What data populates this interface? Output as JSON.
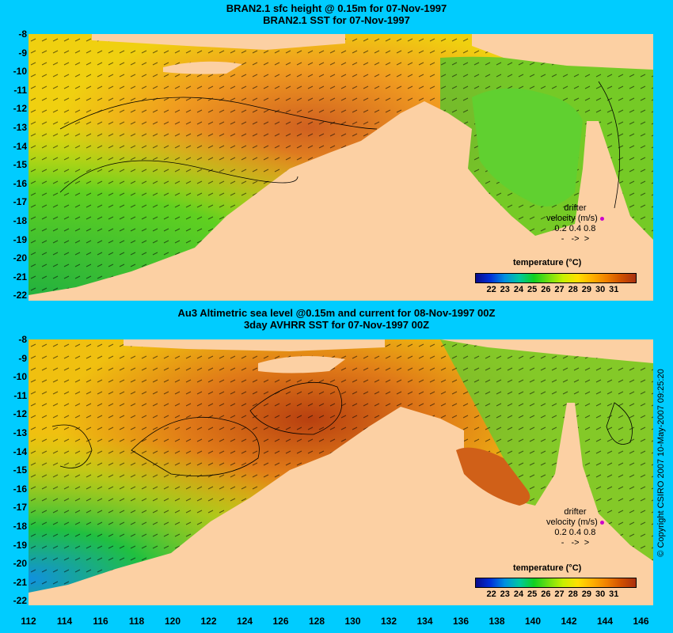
{
  "top": {
    "title_line1": "BRAN2.1 sfc height @ 0.15m for 07-Nov-1997",
    "title_line2": "BRAN2.1 SST for 07-Nov-1997",
    "drifter_label": "drifter",
    "velocity_label": "velocity (m/s)",
    "velocity_scale": "0.2 0.4 0.8",
    "colorbar_title": "temperature (°C)",
    "colorbar_ticks": [
      "22",
      "23",
      "24",
      "25",
      "26",
      "27",
      "28",
      "29",
      "30",
      "31"
    ]
  },
  "bottom": {
    "title_line1": "Au3 Altimetric sea level  @0.15m and current for 08-Nov-1997 00Z",
    "title_line2": "3day AVHRR SST for 07-Nov-1997 00Z",
    "drifter_label": "drifter",
    "velocity_label": "velocity (m/s)",
    "velocity_scale": "0.2 0.4 0.8",
    "colorbar_title": "temperature (°C)",
    "colorbar_ticks": [
      "22",
      "23",
      "24",
      "25",
      "26",
      "27",
      "28",
      "29",
      "30",
      "31"
    ]
  },
  "y_axis_labels": [
    "-8",
    "-9",
    "-10",
    "-11",
    "-12",
    "-13",
    "-14",
    "-15",
    "-16",
    "-17",
    "-18",
    "-19",
    "-20",
    "-21",
    "-22"
  ],
  "x_axis_labels": [
    "112",
    "114",
    "116",
    "118",
    "120",
    "122",
    "124",
    "126",
    "128",
    "130",
    "132",
    "134",
    "136",
    "138",
    "140",
    "142",
    "144",
    "146"
  ],
  "copyright": "© Copyright CSIRO 2007   10-May-2007 09:25:20",
  "colors": {
    "background": "#00ccff",
    "land": "#fcd0a3",
    "drifter": "#cc00cc"
  },
  "map": {
    "lon_range": [
      112,
      146
    ],
    "lat_range": [
      -22,
      -8
    ],
    "colorbar_range": [
      22,
      31
    ]
  }
}
